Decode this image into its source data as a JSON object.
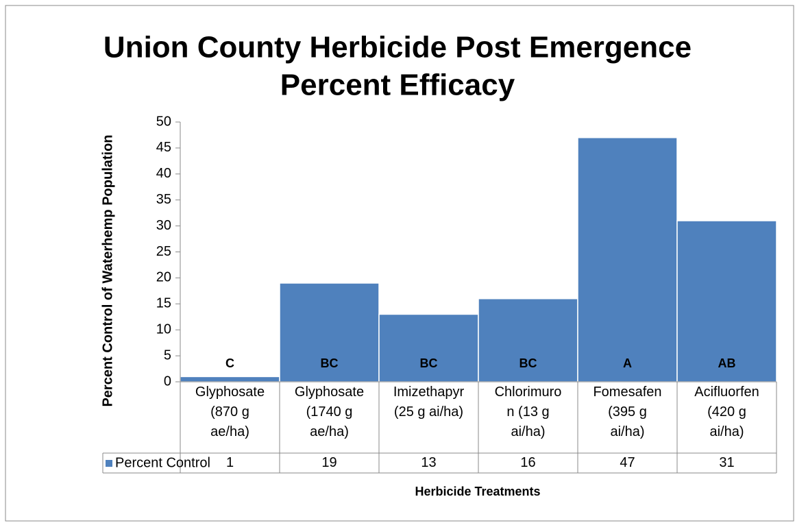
{
  "chart_data": {
    "type": "bar",
    "title": "Union County Herbicide Post Emergence",
    "subtitle": "Percent Efficacy",
    "y_label": "Percent Control of Waterhemp Population",
    "x_label": "Herbicide Treatments",
    "categories": [
      "Glyphosate (870 g ae/ha)",
      "Glyphosate (1740 g ae/ha)",
      "Imizethapyr (25 g ai/ha)",
      "Chlorimuron (13 g ai/ha)",
      "Fomesafen (395 g ai/ha)",
      "Acifluorfen (420 g ai/ha)"
    ],
    "series": [
      {
        "name": "Percent Control",
        "color": "#4f81bd",
        "values": [
          1,
          19,
          13,
          16,
          47,
          31
        ]
      }
    ],
    "annotations": [
      "C",
      "BC",
      "BC",
      "BC",
      "A",
      "AB"
    ],
    "ylim": [
      0,
      50
    ],
    "yticks": [
      0,
      5,
      10,
      15,
      20,
      25,
      30,
      35,
      40,
      45,
      50
    ],
    "grid": false
  }
}
